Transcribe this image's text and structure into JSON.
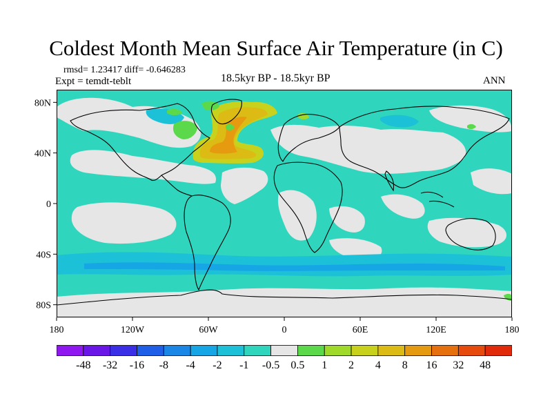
{
  "title": "Coldest Month Mean Surface Air Temperature (in C)",
  "stats": "rmsd= 1.23417  diff= -0.646283",
  "experiment": "Expt = temdt-teblt",
  "period": "18.5kyr BP - 18.5kyr BP",
  "season": "ANN",
  "map": {
    "projection": "cylindrical-equidistant",
    "lon_range": [
      -180,
      180
    ],
    "lat_range": [
      -90,
      90
    ],
    "x_ticks": [
      "180",
      "120W",
      "60W",
      "0",
      "60E",
      "120E",
      "180"
    ],
    "y_ticks": [
      "80N",
      "40N",
      "0",
      "40S",
      "80S"
    ],
    "dominant_field_color": "#2fd6bd",
    "near_zero_color": "#e6e6e6",
    "warm_anomaly_region": "North Atlantic"
  },
  "colorbar": {
    "labels": [
      "-48",
      "-32",
      "-16",
      "-8",
      "-4",
      "-2",
      "-1",
      "-0.5",
      "0.5",
      "1",
      "2",
      "4",
      "8",
      "16",
      "32",
      "48"
    ],
    "colors": [
      "#8f18f0",
      "#6a16e8",
      "#3a2fe6",
      "#1f5fe8",
      "#1a86e6",
      "#16a6e6",
      "#1cc1d8",
      "#2fd6bd",
      "#e6e6e6",
      "#5bd94a",
      "#9fd92a",
      "#c8d21c",
      "#dcbc14",
      "#e69a10",
      "#e6700e",
      "#e64a0c",
      "#e02a0a"
    ]
  }
}
